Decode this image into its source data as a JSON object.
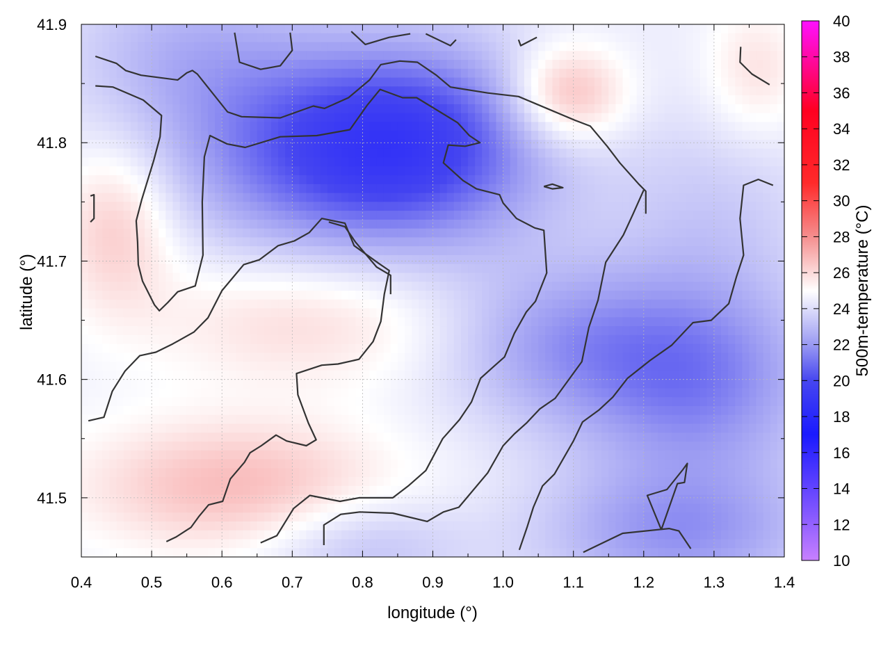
{
  "chart_data": {
    "type": "heatmap",
    "title": "",
    "xlabel": "longitude (°)",
    "ylabel": "latitude (°)",
    "colorbar_label": "500m-temperature (°C)",
    "xlim": [
      0.4,
      1.4
    ],
    "ylim": [
      41.45,
      41.9
    ],
    "x_ticks": [
      {
        "value": 0.4,
        "label": "0.4"
      },
      {
        "value": 0.5,
        "label": "0.5"
      },
      {
        "value": 0.6,
        "label": "0.6"
      },
      {
        "value": 0.7,
        "label": "0.7"
      },
      {
        "value": 0.8,
        "label": "0.8"
      },
      {
        "value": 0.9,
        "label": "0.9"
      },
      {
        "value": 1.0,
        "label": "1.0"
      },
      {
        "value": 1.1,
        "label": "1.1"
      },
      {
        "value": 1.2,
        "label": "1.2"
      },
      {
        "value": 1.3,
        "label": "1.3"
      },
      {
        "value": 1.4,
        "label": "1.4"
      }
    ],
    "y_ticks": [
      {
        "value": 41.5,
        "label": "41.5"
      },
      {
        "value": 41.6,
        "label": "41.6"
      },
      {
        "value": 41.7,
        "label": "41.7"
      },
      {
        "value": 41.8,
        "label": "41.8"
      },
      {
        "value": 41.9,
        "label": "41.9"
      }
    ],
    "colorbar": {
      "range": [
        10,
        40
      ],
      "ticks": [
        {
          "value": 10,
          "label": "10"
        },
        {
          "value": 12,
          "label": "12"
        },
        {
          "value": 14,
          "label": "14"
        },
        {
          "value": 16,
          "label": "16"
        },
        {
          "value": 18,
          "label": "18"
        },
        {
          "value": 20,
          "label": "20"
        },
        {
          "value": 22,
          "label": "22"
        },
        {
          "value": 24,
          "label": "24"
        },
        {
          "value": 26,
          "label": "26"
        },
        {
          "value": 28,
          "label": "28"
        },
        {
          "value": 30,
          "label": "30"
        },
        {
          "value": 32,
          "label": "32"
        },
        {
          "value": 34,
          "label": "34"
        },
        {
          "value": 36,
          "label": "36"
        },
        {
          "value": 38,
          "label": "38"
        },
        {
          "value": 40,
          "label": "40"
        }
      ],
      "stops": [
        {
          "value": 10,
          "color": "#c780ff"
        },
        {
          "value": 13,
          "color": "#7a52ff"
        },
        {
          "value": 17,
          "color": "#1a1aff"
        },
        {
          "value": 20,
          "color": "#4646f0"
        },
        {
          "value": 22,
          "color": "#9a9af2"
        },
        {
          "value": 25,
          "color": "#ffffff"
        },
        {
          "value": 28,
          "color": "#f58e8e"
        },
        {
          "value": 31,
          "color": "#ff2a2a"
        },
        {
          "value": 35,
          "color": "#ff0020"
        },
        {
          "value": 40,
          "color": "#ff10ff"
        }
      ]
    },
    "grid": true,
    "field_regions": [
      {
        "lon": 0.88,
        "lat": 41.8,
        "temp": 20.6,
        "spread_lon": 0.14,
        "spread_lat": 0.06
      },
      {
        "lon": 0.72,
        "lat": 41.79,
        "temp": 21.8,
        "spread_lon": 0.16,
        "spread_lat": 0.06
      },
      {
        "lon": 0.55,
        "lat": 41.88,
        "temp": 23.0,
        "spread_lon": 0.12,
        "spread_lat": 0.05
      },
      {
        "lon": 1.09,
        "lat": 41.84,
        "temp": 27.4,
        "spread_lon": 0.06,
        "spread_lat": 0.03
      },
      {
        "lon": 1.36,
        "lat": 41.86,
        "temp": 25.8,
        "spread_lon": 0.05,
        "spread_lat": 0.04
      },
      {
        "lon": 0.45,
        "lat": 41.73,
        "temp": 26.5,
        "spread_lon": 0.06,
        "spread_lat": 0.05
      },
      {
        "lon": 0.72,
        "lat": 41.65,
        "temp": 26.0,
        "spread_lon": 0.16,
        "spread_lat": 0.04
      },
      {
        "lon": 0.62,
        "lat": 41.51,
        "temp": 26.8,
        "spread_lon": 0.16,
        "spread_lat": 0.04
      },
      {
        "lon": 1.28,
        "lat": 41.6,
        "temp": 21.5,
        "spread_lon": 0.12,
        "spread_lat": 0.06
      },
      {
        "lon": 1.08,
        "lat": 41.63,
        "temp": 22.3,
        "spread_lon": 0.12,
        "spread_lat": 0.05
      },
      {
        "lon": 1.25,
        "lat": 41.47,
        "temp": 22.0,
        "spread_lon": 0.14,
        "spread_lat": 0.04
      },
      {
        "lon": 0.8,
        "lat": 41.46,
        "temp": 23.0,
        "spread_lon": 0.1,
        "spread_lat": 0.03
      },
      {
        "lon": 1.3,
        "lat": 41.74,
        "temp": 23.5,
        "spread_lon": 0.1,
        "spread_lat": 0.06
      }
    ],
    "contours": [
      [
        [
          0.42,
          41.873
        ],
        [
          0.45,
          41.867
        ],
        [
          0.463,
          41.861
        ],
        [
          0.485,
          41.857
        ],
        [
          0.537,
          41.853
        ],
        [
          0.55,
          41.859
        ],
        [
          0.558,
          41.861
        ],
        [
          0.565,
          41.858
        ],
        [
          0.608,
          41.826
        ],
        [
          0.628,
          41.822
        ],
        [
          0.683,
          41.821
        ],
        [
          0.73,
          41.831
        ],
        [
          0.746,
          41.829
        ],
        [
          0.78,
          41.838
        ],
        [
          0.81,
          41.853
        ],
        [
          0.826,
          41.866
        ],
        [
          0.853,
          41.869
        ],
        [
          0.878,
          41.868
        ],
        [
          0.905,
          41.857
        ],
        [
          0.925,
          41.847
        ],
        [
          0.978,
          41.842
        ],
        [
          1.022,
          41.839
        ],
        [
          1.102,
          41.819
        ],
        [
          1.124,
          41.814
        ],
        [
          1.148,
          41.797
        ],
        [
          1.166,
          41.783
        ],
        [
          1.193,
          41.765
        ],
        [
          1.203,
          41.759
        ],
        [
          1.203,
          41.74
        ]
      ],
      [
        [
          0.42,
          41.848
        ],
        [
          0.445,
          41.847
        ],
        [
          0.488,
          41.836
        ],
        [
          0.514,
          41.823
        ],
        [
          0.512,
          41.805
        ],
        [
          0.503,
          41.785
        ],
        [
          0.486,
          41.752
        ],
        [
          0.478,
          41.734
        ],
        [
          0.48,
          41.716
        ],
        [
          0.481,
          41.697
        ],
        [
          0.487,
          41.683
        ],
        [
          0.504,
          41.663
        ],
        [
          0.511,
          41.658
        ],
        [
          0.523,
          41.665
        ],
        [
          0.537,
          41.674
        ],
        [
          0.562,
          41.679
        ],
        [
          0.573,
          41.705
        ],
        [
          0.572,
          41.75
        ],
        [
          0.575,
          41.788
        ],
        [
          0.583,
          41.806
        ],
        [
          0.607,
          41.799
        ],
        [
          0.633,
          41.796
        ],
        [
          0.683,
          41.805
        ],
        [
          0.735,
          41.806
        ],
        [
          0.782,
          41.811
        ],
        [
          0.807,
          41.832
        ],
        [
          0.825,
          41.845
        ],
        [
          0.857,
          41.838
        ],
        [
          0.877,
          41.838
        ],
        [
          0.935,
          41.817
        ],
        [
          0.952,
          41.806
        ],
        [
          0.967,
          41.8
        ],
        [
          0.946,
          41.797
        ],
        [
          0.922,
          41.798
        ],
        [
          0.915,
          41.783
        ],
        [
          0.943,
          41.768
        ],
        [
          0.962,
          41.761
        ],
        [
          0.995,
          41.756
        ],
        [
          1.0,
          41.749
        ],
        [
          1.019,
          41.736
        ],
        [
          1.045,
          41.728
        ],
        [
          1.058,
          41.726
        ],
        [
          1.062,
          41.69
        ],
        [
          1.046,
          41.666
        ],
        [
          1.033,
          41.657
        ],
        [
          1.016,
          41.639
        ],
        [
          1.002,
          41.619
        ],
        [
          0.985,
          41.61
        ],
        [
          0.968,
          41.601
        ],
        [
          0.955,
          41.581
        ],
        [
          0.938,
          41.566
        ],
        [
          0.914,
          41.55
        ],
        [
          0.89,
          41.523
        ],
        [
          0.865,
          41.51
        ],
        [
          0.843,
          41.5
        ],
        [
          0.795,
          41.5
        ],
        [
          0.768,
          41.497
        ],
        [
          0.725,
          41.502
        ],
        [
          0.702,
          41.491
        ],
        [
          0.678,
          41.468
        ],
        [
          0.655,
          41.462
        ]
      ],
      [
        [
          0.41,
          41.565
        ],
        [
          0.432,
          41.568
        ],
        [
          0.444,
          41.59
        ],
        [
          0.462,
          41.607
        ],
        [
          0.483,
          41.62
        ],
        [
          0.506,
          41.623
        ],
        [
          0.53,
          41.63
        ],
        [
          0.56,
          41.64
        ],
        [
          0.58,
          41.652
        ],
        [
          0.6,
          41.675
        ],
        [
          0.631,
          41.697
        ],
        [
          0.653,
          41.701
        ],
        [
          0.68,
          41.713
        ],
        [
          0.703,
          41.717
        ],
        [
          0.724,
          41.724
        ],
        [
          0.742,
          41.736
        ],
        [
          0.775,
          41.732
        ],
        [
          0.788,
          41.713
        ],
        [
          0.823,
          41.698
        ],
        [
          0.838,
          41.692
        ],
        [
          0.831,
          41.672
        ],
        [
          0.826,
          41.649
        ],
        [
          0.815,
          41.632
        ],
        [
          0.795,
          41.617
        ],
        [
          0.765,
          41.613
        ],
        [
          0.742,
          41.612
        ],
        [
          0.706,
          41.605
        ],
        [
          0.708,
          41.587
        ],
        [
          0.718,
          41.571
        ],
        [
          0.723,
          41.563
        ],
        [
          0.734,
          41.549
        ],
        [
          0.72,
          41.544
        ],
        [
          0.692,
          41.548
        ],
        [
          0.677,
          41.553
        ],
        [
          0.656,
          41.544
        ],
        [
          0.64,
          41.538
        ],
        [
          0.632,
          41.53
        ],
        [
          0.612,
          41.516
        ],
        [
          0.601,
          41.497
        ],
        [
          0.581,
          41.494
        ],
        [
          0.567,
          41.484
        ],
        [
          0.556,
          41.475
        ],
        [
          0.535,
          41.467
        ],
        [
          0.521,
          41.463
        ]
      ],
      [
        [
          0.745,
          41.46
        ],
        [
          0.745,
          41.477
        ],
        [
          0.769,
          41.486
        ],
        [
          0.796,
          41.488
        ],
        [
          0.843,
          41.487
        ],
        [
          0.892,
          41.48
        ],
        [
          0.915,
          41.488
        ],
        [
          0.937,
          41.492
        ],
        [
          0.978,
          41.521
        ],
        [
          1.0,
          41.544
        ],
        [
          1.016,
          41.554
        ],
        [
          1.033,
          41.563
        ],
        [
          1.052,
          41.575
        ],
        [
          1.074,
          41.584
        ],
        [
          1.112,
          41.615
        ],
        [
          1.122,
          41.644
        ],
        [
          1.135,
          41.667
        ],
        [
          1.146,
          41.699
        ],
        [
          1.171,
          41.722
        ],
        [
          1.185,
          41.74
        ],
        [
          1.2,
          41.76
        ]
      ],
      [
        [
          0.752,
          41.733
        ],
        [
          0.775,
          41.729
        ],
        [
          0.79,
          41.716
        ],
        [
          0.82,
          41.695
        ],
        [
          0.84,
          41.688
        ],
        [
          0.84,
          41.672
        ]
      ],
      [
        [
          1.023,
          41.456
        ],
        [
          1.034,
          41.475
        ],
        [
          1.043,
          41.492
        ],
        [
          1.056,
          41.51
        ],
        [
          1.073,
          41.52
        ],
        [
          1.1,
          41.548
        ],
        [
          1.113,
          41.564
        ],
        [
          1.136,
          41.574
        ],
        [
          1.156,
          41.585
        ],
        [
          1.177,
          41.601
        ],
        [
          1.209,
          41.616
        ],
        [
          1.24,
          41.629
        ],
        [
          1.27,
          41.648
        ],
        [
          1.296,
          41.65
        ],
        [
          1.321,
          41.664
        ],
        [
          1.332,
          41.687
        ],
        [
          1.342,
          41.705
        ],
        [
          1.337,
          41.736
        ],
        [
          1.342,
          41.764
        ],
        [
          1.363,
          41.769
        ],
        [
          1.384,
          41.764
        ]
      ],
      [
        [
          1.225,
          41.473
        ],
        [
          1.248,
          41.512
        ],
        [
          1.258,
          41.513
        ],
        [
          1.262,
          41.529
        ],
        [
          1.256,
          41.524
        ],
        [
          1.233,
          41.507
        ],
        [
          1.205,
          41.502
        ],
        [
          1.225,
          41.473
        ]
      ],
      [
        [
          1.114,
          41.454
        ],
        [
          1.135,
          41.46
        ],
        [
          1.17,
          41.47
        ],
        [
          1.236,
          41.474
        ],
        [
          1.25,
          41.472
        ],
        [
          1.267,
          41.457
        ]
      ],
      [
        [
          1.338,
          41.881
        ],
        [
          1.337,
          41.868
        ],
        [
          1.354,
          41.858
        ],
        [
          1.379,
          41.849
        ]
      ],
      [
        [
          0.618,
          41.893
        ],
        [
          0.625,
          41.868
        ],
        [
          0.655,
          41.862
        ],
        [
          0.683,
          41.865
        ],
        [
          0.7,
          41.878
        ],
        [
          0.697,
          41.893
        ]
      ],
      [
        [
          0.784,
          41.894
        ],
        [
          0.804,
          41.883
        ],
        [
          0.838,
          41.889
        ],
        [
          0.868,
          41.892
        ]
      ],
      [
        [
          0.89,
          41.892
        ],
        [
          0.925,
          41.882
        ],
        [
          0.933,
          41.887
        ]
      ],
      [
        [
          1.022,
          41.887
        ],
        [
          1.025,
          41.882
        ],
        [
          1.048,
          41.889
        ]
      ],
      [
        [
          0.413,
          41.755
        ],
        [
          0.418,
          41.756
        ],
        [
          0.418,
          41.736
        ],
        [
          0.413,
          41.733
        ]
      ],
      [
        [
          1.058,
          41.763
        ],
        [
          1.07,
          41.765
        ],
        [
          1.085,
          41.762
        ],
        [
          1.07,
          41.761
        ],
        [
          1.058,
          41.763
        ]
      ]
    ]
  }
}
